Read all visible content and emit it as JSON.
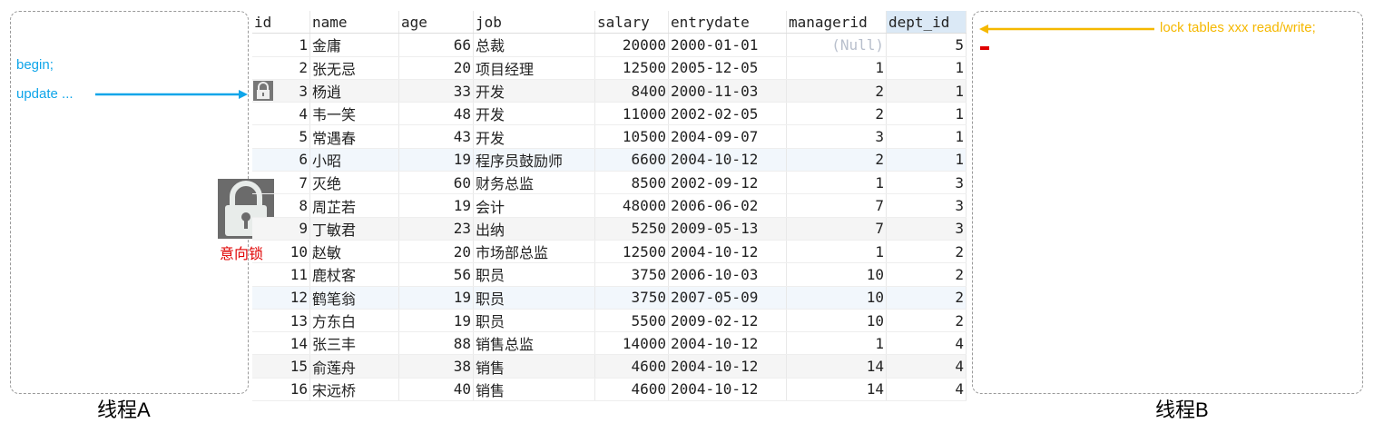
{
  "threadA": {
    "caption": "线程A",
    "notes": [
      "begin;",
      "update ..."
    ]
  },
  "threadB": {
    "caption": "线程B",
    "note": "lock tables xxx read/write;"
  },
  "intent_lock_label": "意向锁",
  "colors": {
    "blue": "#0ea5e9",
    "orange": "#f5b800",
    "red": "#e00000"
  },
  "table": {
    "columns": [
      "id",
      "name",
      "age",
      "job",
      "salary",
      "entrydate",
      "managerid",
      "dept_id"
    ],
    "selected_column": "dept_id",
    "locked_row_id": "3",
    "rows": [
      [
        "1",
        "金庸",
        "66",
        "总裁",
        "20000",
        "2000-01-01",
        "(Null)",
        "5"
      ],
      [
        "2",
        "张无忌",
        "20",
        "项目经理",
        "12500",
        "2005-12-05",
        "1",
        "1"
      ],
      [
        "3",
        "杨逍",
        "33",
        "开发",
        "8400",
        "2000-11-03",
        "2",
        "1"
      ],
      [
        "4",
        "韦一笑",
        "48",
        "开发",
        "11000",
        "2002-02-05",
        "2",
        "1"
      ],
      [
        "5",
        "常遇春",
        "43",
        "开发",
        "10500",
        "2004-09-07",
        "3",
        "1"
      ],
      [
        "6",
        "小昭",
        "19",
        "程序员鼓励师",
        "6600",
        "2004-10-12",
        "2",
        "1"
      ],
      [
        "7",
        "灭绝",
        "60",
        "财务总监",
        "8500",
        "2002-09-12",
        "1",
        "3"
      ],
      [
        "8",
        "周芷若",
        "19",
        "会计",
        "48000",
        "2006-06-02",
        "7",
        "3"
      ],
      [
        "9",
        "丁敏君",
        "23",
        "出纳",
        "5250",
        "2009-05-13",
        "7",
        "3"
      ],
      [
        "10",
        "赵敏",
        "20",
        "市场部总监",
        "12500",
        "2004-10-12",
        "1",
        "2"
      ],
      [
        "11",
        "鹿杖客",
        "56",
        "职员",
        "3750",
        "2006-10-03",
        "10",
        "2"
      ],
      [
        "12",
        "鹤笔翁",
        "19",
        "职员",
        "3750",
        "2007-05-09",
        "10",
        "2"
      ],
      [
        "13",
        "方东白",
        "19",
        "职员",
        "5500",
        "2009-02-12",
        "10",
        "2"
      ],
      [
        "14",
        "张三丰",
        "88",
        "销售总监",
        "14000",
        "2004-10-12",
        "1",
        "4"
      ],
      [
        "15",
        "俞莲舟",
        "38",
        "销售",
        "4600",
        "2004-10-12",
        "14",
        "4"
      ],
      [
        "16",
        "宋远桥",
        "40",
        "销售",
        "4600",
        "2004-10-12",
        "14",
        "4"
      ]
    ]
  }
}
